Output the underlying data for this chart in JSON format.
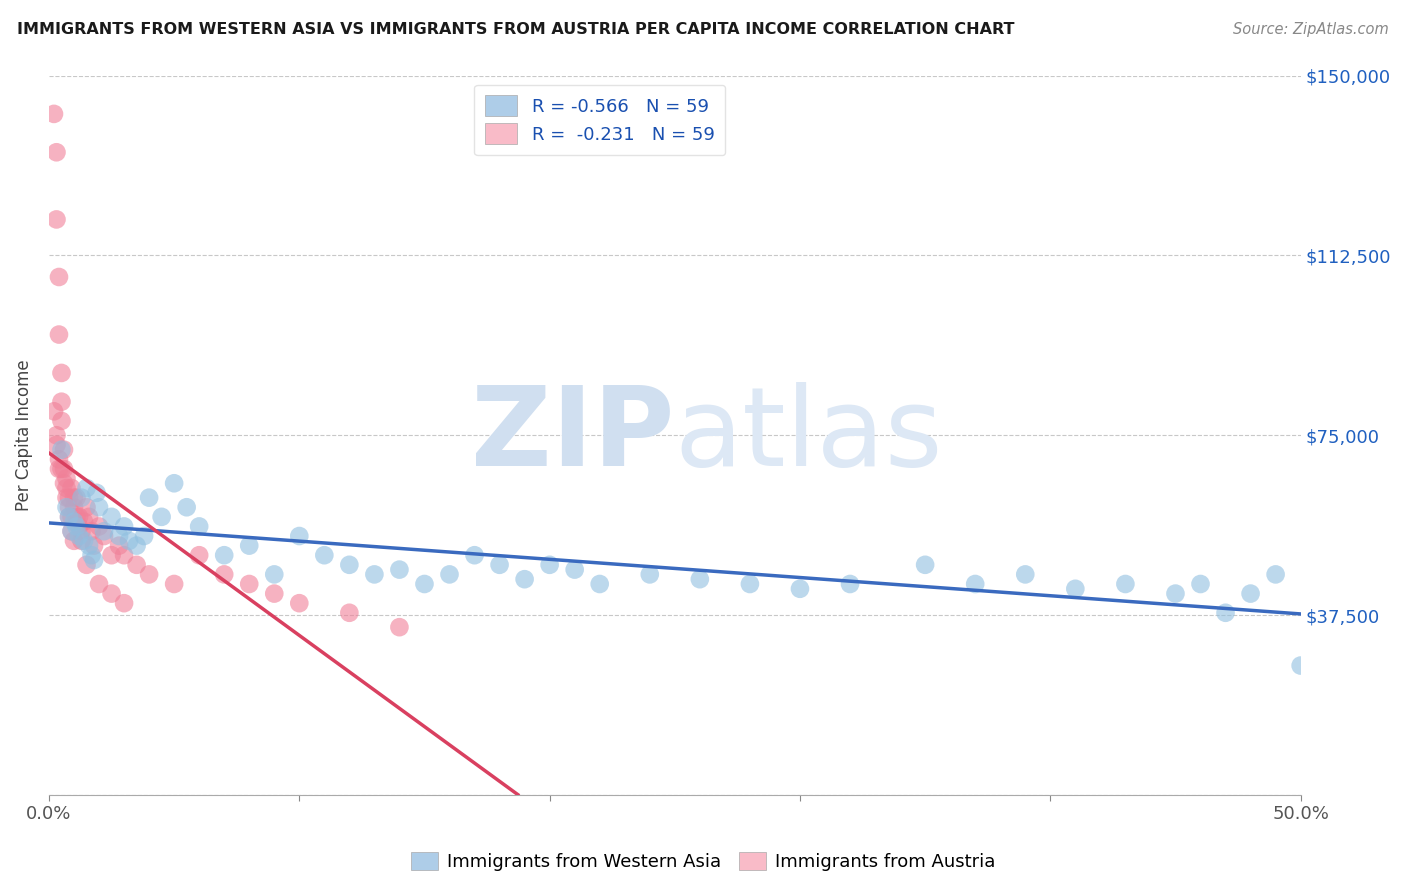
{
  "title": "IMMIGRANTS FROM WESTERN ASIA VS IMMIGRANTS FROM AUSTRIA PER CAPITA INCOME CORRELATION CHART",
  "source": "Source: ZipAtlas.com",
  "ylabel": "Per Capita Income",
  "y_ticks": [
    0,
    37500,
    75000,
    112500,
    150000
  ],
  "y_tick_labels": [
    "",
    "$37,500",
    "$75,000",
    "$112,500",
    "$150,000"
  ],
  "x_ticks": [
    0.0,
    0.1,
    0.2,
    0.3,
    0.4,
    0.5
  ],
  "x_tick_labels": [
    "0.0%",
    "",
    "",
    "",
    "",
    "50.0%"
  ],
  "watermark_zip": "ZIP",
  "watermark_atlas": "atlas",
  "legend_blue_label": "R = -0.566   N = 59",
  "legend_pink_label": "R =  -0.231   N = 59",
  "legend_blue_color": "#aecde8",
  "legend_pink_color": "#f9bbc8",
  "scatter_blue_color": "#90bfe0",
  "scatter_pink_color": "#f08098",
  "trendline_blue_color": "#3a6abf",
  "trendline_pink_color": "#d94060",
  "background_color": "#ffffff",
  "grid_color": "#c8c8c8",
  "title_color": "#1a1a1a",
  "ylabel_color": "#444444",
  "ytick_color": "#2060c0",
  "xtick_color": "#555555",
  "blue_x": [
    0.005,
    0.007,
    0.008,
    0.009,
    0.01,
    0.011,
    0.012,
    0.013,
    0.014,
    0.015,
    0.016,
    0.017,
    0.018,
    0.019,
    0.02,
    0.022,
    0.025,
    0.028,
    0.03,
    0.032,
    0.035,
    0.038,
    0.04,
    0.045,
    0.05,
    0.055,
    0.06,
    0.07,
    0.08,
    0.09,
    0.1,
    0.11,
    0.12,
    0.13,
    0.14,
    0.15,
    0.16,
    0.17,
    0.18,
    0.19,
    0.2,
    0.21,
    0.22,
    0.24,
    0.26,
    0.28,
    0.3,
    0.32,
    0.35,
    0.37,
    0.39,
    0.41,
    0.43,
    0.45,
    0.46,
    0.47,
    0.48,
    0.49,
    0.5
  ],
  "blue_y": [
    72000,
    60000,
    58000,
    55000,
    57000,
    56000,
    54000,
    62000,
    53000,
    64000,
    52000,
    50000,
    49000,
    63000,
    60000,
    55000,
    58000,
    54000,
    56000,
    53000,
    52000,
    54000,
    62000,
    58000,
    65000,
    60000,
    56000,
    50000,
    52000,
    46000,
    54000,
    50000,
    48000,
    46000,
    47000,
    44000,
    46000,
    50000,
    48000,
    45000,
    48000,
    47000,
    44000,
    46000,
    45000,
    44000,
    43000,
    44000,
    48000,
    44000,
    46000,
    43000,
    44000,
    42000,
    44000,
    38000,
    42000,
    46000,
    27000
  ],
  "pink_x": [
    0.002,
    0.003,
    0.003,
    0.004,
    0.004,
    0.005,
    0.005,
    0.005,
    0.006,
    0.006,
    0.007,
    0.007,
    0.008,
    0.008,
    0.009,
    0.009,
    0.01,
    0.01,
    0.011,
    0.011,
    0.012,
    0.012,
    0.013,
    0.013,
    0.014,
    0.015,
    0.016,
    0.017,
    0.018,
    0.02,
    0.022,
    0.025,
    0.028,
    0.03,
    0.035,
    0.04,
    0.05,
    0.06,
    0.07,
    0.08,
    0.09,
    0.1,
    0.12,
    0.14,
    0.003,
    0.004,
    0.005,
    0.006,
    0.007,
    0.008,
    0.009,
    0.01,
    0.015,
    0.02,
    0.025,
    0.03,
    0.002,
    0.003,
    0.004
  ],
  "pink_y": [
    142000,
    134000,
    120000,
    108000,
    96000,
    88000,
    82000,
    78000,
    72000,
    68000,
    66000,
    64000,
    62000,
    60000,
    58000,
    64000,
    62000,
    60000,
    58000,
    62000,
    56000,
    58000,
    55000,
    53000,
    57000,
    60000,
    58000,
    55000,
    52000,
    56000,
    54000,
    50000,
    52000,
    50000,
    48000,
    46000,
    44000,
    50000,
    46000,
    44000,
    42000,
    40000,
    38000,
    35000,
    75000,
    70000,
    68000,
    65000,
    62000,
    58000,
    55000,
    53000,
    48000,
    44000,
    42000,
    40000,
    80000,
    73000,
    68000
  ]
}
